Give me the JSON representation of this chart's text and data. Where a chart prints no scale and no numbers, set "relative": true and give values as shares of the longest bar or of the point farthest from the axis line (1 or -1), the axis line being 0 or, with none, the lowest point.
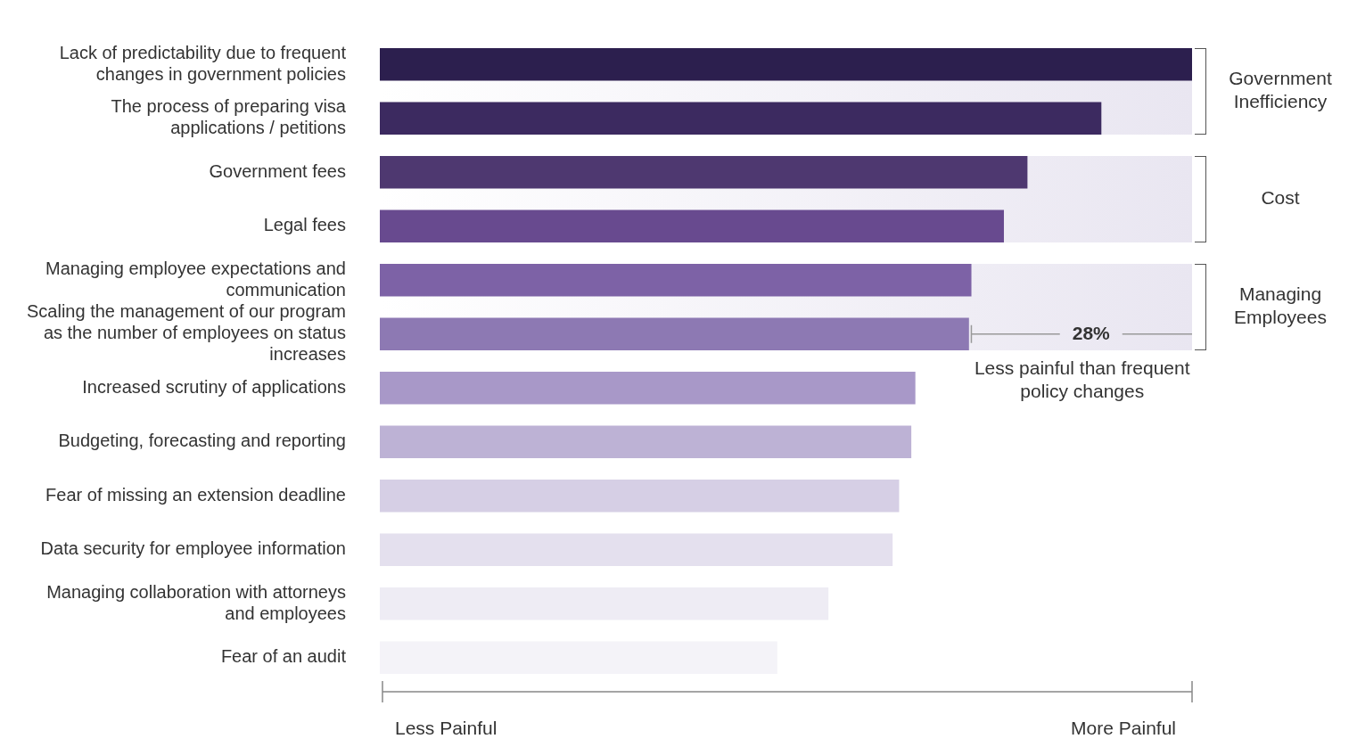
{
  "chart_data": {
    "type": "bar",
    "orientation": "horizontal",
    "relative": true,
    "categories": [
      "Lack of predictability due to frequent changes in government policies",
      "The process of preparing visa applications / petitions",
      "Government fees",
      "Legal fees",
      "Managing employee expectations and communication",
      "Scaling the management of our program as the number of employees on status increases",
      "Increased scrutiny of applications",
      "Budgeting, forecasting and reporting",
      "Fear of missing an extension deadline",
      "Data security for employee information",
      "Managing collaboration with attorneys and employees",
      "Fear of an audit"
    ],
    "values": [
      1,
      0.888,
      0.797,
      0.768,
      0.728,
      0.725,
      0.659,
      0.654,
      0.639,
      0.631,
      0.552,
      0.489
    ],
    "colors": [
      "#2c1f4e",
      "#3c2a60",
      "#4e3870",
      "#684a8f",
      "#7d62a6",
      "#8d79b3",
      "#a898c8",
      "#bdb2d5",
      "#d6cfe5",
      "#e4e0ee",
      "#eeecf4",
      "#f4f3f8"
    ],
    "annotations": [
      "28%",
      "Less painful than frequent policy changes",
      "Less Painful",
      "More Painful",
      "Government Inefficiency",
      "Cost",
      "Managing Employees"
    ],
    "legend": false
  }
}
